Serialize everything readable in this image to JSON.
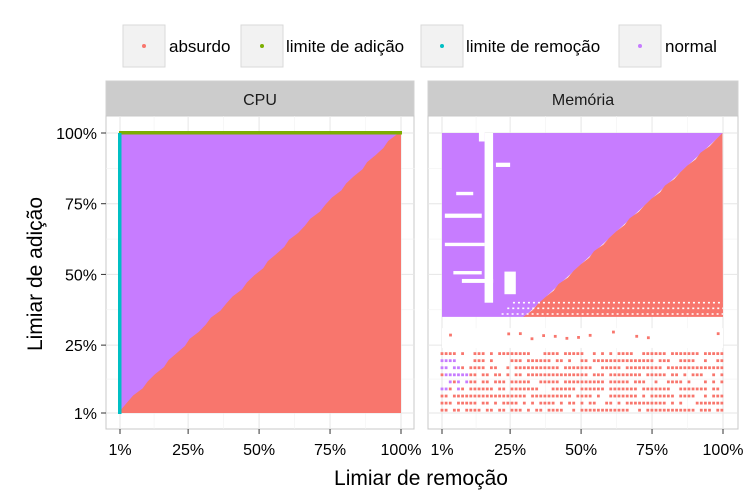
{
  "chart_data": {
    "type": "scatter",
    "xlabel": "Limiar de remoção",
    "ylabel": "Limiar de adição",
    "xticks": [
      "1%",
      "25%",
      "50%",
      "75%",
      "100%"
    ],
    "yticks": [
      "1%",
      "25%",
      "50%",
      "75%",
      "100%"
    ],
    "xlim": [
      1,
      100
    ],
    "ylim": [
      1,
      100
    ],
    "grid": true,
    "legend_position": "top",
    "legend": [
      {
        "label": "absurdo",
        "color": "#F8766D"
      },
      {
        "label": "limite de adição",
        "color": "#7CAE00"
      },
      {
        "label": "limite de remoção",
        "color": "#00BFC4"
      },
      {
        "label": "normal",
        "color": "#C77CFF"
      }
    ],
    "panels": [
      {
        "title": "CPU",
        "series": [
          {
            "name": "normal",
            "region": "above diagonal (adição > remoção), x from 1% to 100%",
            "x": [
              1,
              1,
              100
            ],
            "y": [
              1,
              100,
              100
            ]
          },
          {
            "name": "absurdo",
            "region": "below diagonal (adição <= remoção)",
            "x": [
              1,
              100,
              100
            ],
            "y": [
              1,
              1,
              100
            ]
          },
          {
            "name": "limite de adição",
            "points": "y = 100% for all x",
            "x": [
              1,
              100
            ],
            "y": [
              100,
              100
            ]
          },
          {
            "name": "limite de remoção",
            "points": "x = 1% for all y",
            "x": [
              1,
              1
            ],
            "y": [
              1,
              100
            ]
          }
        ]
      },
      {
        "title": "Memória",
        "series": [
          {
            "name": "normal",
            "region": "scattered block, adição 35%–100%, above diagonal; sparse points at adição 10%–22%"
          },
          {
            "name": "absurdo",
            "region": "below diagonal for adição 35%–100%; dense horizontal bands at adição 1%–22% and near 35%–40%"
          }
        ]
      }
    ]
  }
}
